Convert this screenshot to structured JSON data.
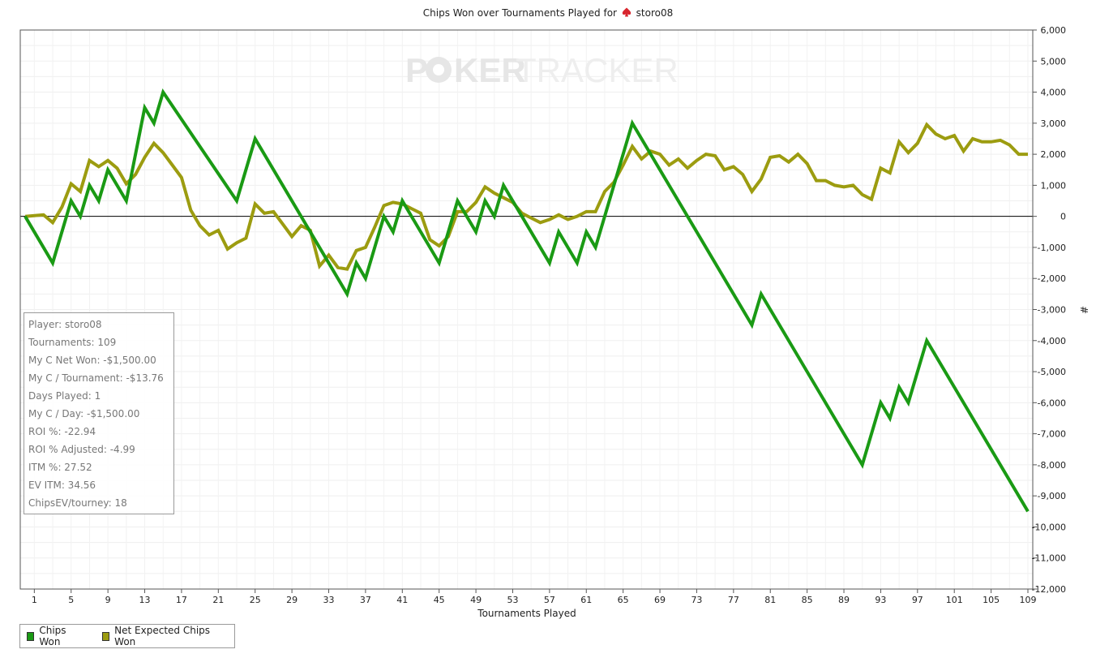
{
  "title_prefix": "Chips Won over Tournaments Played for",
  "player_name": "storo08",
  "watermark": {
    "left": "P",
    "right": "KER",
    "suffix": "TRACKER"
  },
  "stats": [
    "Player: storo08",
    "Tournaments: 109",
    "My C Net Won: -$1,500.00",
    "My C / Tournament: -$13.76",
    "Days Played: 1",
    "My C / Day: -$1,500.00",
    "ROI %: -22.94",
    "ROI % Adjusted: -4.99",
    "ITM %: 27.52",
    "EV ITM: 34.56",
    "ChipsEV/tourney: 18"
  ],
  "chart_data": {
    "type": "line",
    "xlabel": "Tournaments Played",
    "ylabel": "#",
    "xlim": [
      0,
      109
    ],
    "ylim": [
      -12000,
      6000
    ],
    "x_ticks": [
      1,
      5,
      9,
      13,
      17,
      21,
      25,
      29,
      33,
      37,
      41,
      45,
      49,
      53,
      57,
      61,
      65,
      69,
      73,
      77,
      81,
      85,
      89,
      93,
      97,
      101,
      105,
      109
    ],
    "y_ticks": [
      6000,
      5000,
      4000,
      3000,
      2000,
      1000,
      0,
      -1000,
      -2000,
      -3000,
      -4000,
      -5000,
      -6000,
      -7000,
      -8000,
      -9000,
      -10000,
      -11000,
      -12000
    ],
    "y_tick_labels": [
      "6,000",
      "5,000",
      "4,000",
      "3,000",
      "2,000",
      "1,000",
      "0",
      "-1,000",
      "-2,000",
      "-3,000",
      "-4,000",
      "-5,000",
      "-6,000",
      "-7,000",
      "-8,000",
      "-9,000",
      "-10,000",
      "-11,000",
      "-12,000"
    ],
    "grid": true,
    "legend_position": "bottom-left",
    "series": [
      {
        "name": "Chips Won",
        "color": "#1a9a14",
        "points": [
          [
            0,
            0
          ],
          [
            3,
            -1500
          ],
          [
            5,
            500
          ],
          [
            6,
            0
          ],
          [
            7,
            1000
          ],
          [
            8,
            500
          ],
          [
            9,
            1500
          ],
          [
            11,
            500
          ],
          [
            13,
            3500
          ],
          [
            14,
            3000
          ],
          [
            15,
            4000
          ],
          [
            23,
            500
          ],
          [
            25,
            2500
          ],
          [
            35,
            -2500
          ],
          [
            36,
            -1500
          ],
          [
            37,
            -2000
          ],
          [
            39,
            0
          ],
          [
            40,
            -500
          ],
          [
            41,
            500
          ],
          [
            45,
            -1500
          ],
          [
            47,
            500
          ],
          [
            49,
            -500
          ],
          [
            50,
            500
          ],
          [
            51,
            0
          ],
          [
            52,
            1000
          ],
          [
            57,
            -1500
          ],
          [
            58,
            -500
          ],
          [
            60,
            -1500
          ],
          [
            61,
            -500
          ],
          [
            62,
            -1000
          ],
          [
            66,
            3000
          ],
          [
            79,
            -3500
          ],
          [
            80,
            -2500
          ],
          [
            91,
            -8000
          ],
          [
            93,
            -6000
          ],
          [
            94,
            -6500
          ],
          [
            95,
            -5500
          ],
          [
            96,
            -6000
          ],
          [
            98,
            -4000
          ],
          [
            109,
            -9500
          ]
        ]
      },
      {
        "name": "Net Expected Chips Won",
        "color": "#9c9c10",
        "points": [
          [
            0,
            0
          ],
          [
            2,
            50
          ],
          [
            3,
            -200
          ],
          [
            4,
            300
          ],
          [
            5,
            1050
          ],
          [
            6,
            800
          ],
          [
            7,
            1800
          ],
          [
            8,
            1600
          ],
          [
            9,
            1800
          ],
          [
            10,
            1550
          ],
          [
            11,
            1050
          ],
          [
            12,
            1350
          ],
          [
            13,
            1900
          ],
          [
            14,
            2350
          ],
          [
            15,
            2050
          ],
          [
            16,
            1650
          ],
          [
            17,
            1250
          ],
          [
            18,
            200
          ],
          [
            19,
            -300
          ],
          [
            20,
            -600
          ],
          [
            21,
            -450
          ],
          [
            22,
            -1050
          ],
          [
            23,
            -850
          ],
          [
            24,
            -700
          ],
          [
            25,
            400
          ],
          [
            26,
            100
          ],
          [
            27,
            150
          ],
          [
            28,
            -250
          ],
          [
            29,
            -650
          ],
          [
            30,
            -300
          ],
          [
            31,
            -450
          ],
          [
            32,
            -1600
          ],
          [
            33,
            -1250
          ],
          [
            34,
            -1650
          ],
          [
            35,
            -1700
          ],
          [
            36,
            -1100
          ],
          [
            37,
            -1000
          ],
          [
            38,
            -350
          ],
          [
            39,
            350
          ],
          [
            40,
            450
          ],
          [
            41,
            400
          ],
          [
            42,
            250
          ],
          [
            43,
            100
          ],
          [
            44,
            -750
          ],
          [
            45,
            -950
          ],
          [
            46,
            -650
          ],
          [
            47,
            150
          ],
          [
            48,
            150
          ],
          [
            49,
            450
          ],
          [
            50,
            950
          ],
          [
            51,
            750
          ],
          [
            52,
            600
          ],
          [
            53,
            450
          ],
          [
            54,
            100
          ],
          [
            55,
            -50
          ],
          [
            56,
            -200
          ],
          [
            57,
            -100
          ],
          [
            58,
            50
          ],
          [
            59,
            -100
          ],
          [
            60,
            0
          ],
          [
            61,
            150
          ],
          [
            62,
            150
          ],
          [
            63,
            800
          ],
          [
            64,
            1100
          ],
          [
            65,
            1650
          ],
          [
            66,
            2250
          ],
          [
            67,
            1850
          ],
          [
            68,
            2100
          ],
          [
            69,
            2000
          ],
          [
            70,
            1650
          ],
          [
            71,
            1850
          ],
          [
            72,
            1550
          ],
          [
            73,
            1800
          ],
          [
            74,
            2000
          ],
          [
            75,
            1950
          ],
          [
            76,
            1500
          ],
          [
            77,
            1600
          ],
          [
            78,
            1350
          ],
          [
            79,
            800
          ],
          [
            80,
            1200
          ],
          [
            81,
            1900
          ],
          [
            82,
            1950
          ],
          [
            83,
            1750
          ],
          [
            84,
            2000
          ],
          [
            85,
            1700
          ],
          [
            86,
            1150
          ],
          [
            87,
            1150
          ],
          [
            88,
            1000
          ],
          [
            89,
            950
          ],
          [
            90,
            1000
          ],
          [
            91,
            700
          ],
          [
            92,
            550
          ],
          [
            93,
            1550
          ],
          [
            94,
            1400
          ],
          [
            95,
            2400
          ],
          [
            96,
            2050
          ],
          [
            97,
            2350
          ],
          [
            98,
            2950
          ],
          [
            99,
            2650
          ],
          [
            100,
            2500
          ],
          [
            101,
            2600
          ],
          [
            102,
            2100
          ],
          [
            103,
            2500
          ],
          [
            104,
            2400
          ],
          [
            105,
            2400
          ],
          [
            106,
            2450
          ],
          [
            107,
            2300
          ],
          [
            108,
            2000
          ],
          [
            109,
            2000
          ]
        ]
      }
    ]
  }
}
